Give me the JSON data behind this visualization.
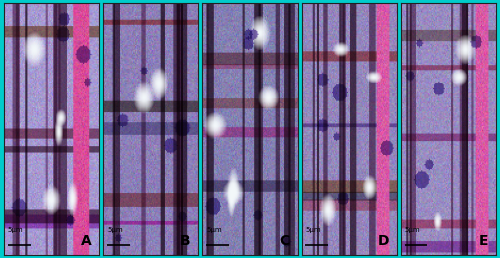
{
  "panels": [
    "A",
    "B",
    "C",
    "D",
    "E"
  ],
  "figure_width": 5.0,
  "figure_height": 2.58,
  "dpi": 100,
  "background_color": "#00CCCC",
  "border_color": "#000000",
  "label_fontsize": 10,
  "scalebar_text": "5μm",
  "scalebar_fontsize": 5,
  "outer_border": "#444444"
}
